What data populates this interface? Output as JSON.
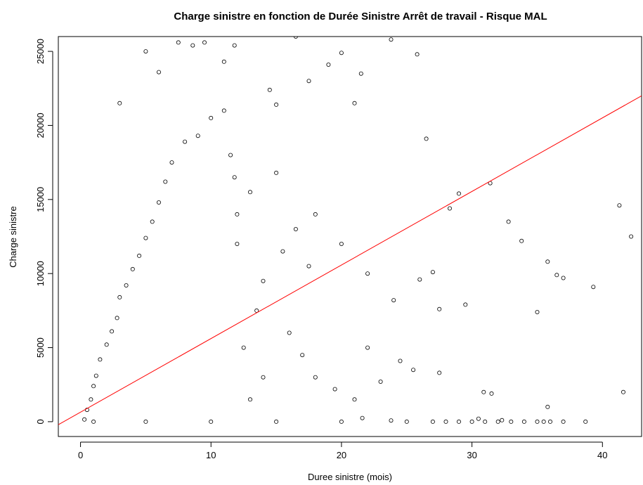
{
  "chart_data": {
    "type": "scatter",
    "title": "Charge sinistre en fonction de Durée Sinistre Arrêt de travail - Risque MAL",
    "xlabel": "Duree sinistre (mois)",
    "ylabel": "Charge sinistre",
    "xlim": [
      -1.7,
      43.0
    ],
    "ylim": [
      -1000,
      26000
    ],
    "x_ticks": [
      0,
      10,
      20,
      30,
      40
    ],
    "y_ticks": [
      0,
      5000,
      10000,
      15000,
      20000,
      25000
    ],
    "grid": false,
    "legend": "none",
    "marker": "open-circle",
    "marker_color": "#000000",
    "regression_line": {
      "color": "#ff0000",
      "points": [
        [
          -1.7,
          -200
        ],
        [
          43.0,
          22000
        ]
      ]
    },
    "sample_points": [
      [
        0.3,
        150
      ],
      [
        0.5,
        800
      ],
      [
        0.8,
        1500
      ],
      [
        1.0,
        2400
      ],
      [
        1.2,
        3100
      ],
      [
        1.5,
        4200
      ],
      [
        2.0,
        5200
      ],
      [
        2.4,
        6100
      ],
      [
        2.8,
        7000
      ],
      [
        3.0,
        8400
      ],
      [
        3.5,
        9200
      ],
      [
        4.0,
        10300
      ],
      [
        4.5,
        11200
      ],
      [
        5.0,
        12400
      ],
      [
        5.5,
        13500
      ],
      [
        6.0,
        14800
      ],
      [
        6.5,
        16200
      ],
      [
        7.0,
        17500
      ],
      [
        8.0,
        18900
      ],
      [
        9.0,
        19300
      ],
      [
        10.0,
        20500
      ],
      [
        11.0,
        21000
      ],
      [
        11.5,
        18000
      ],
      [
        11.8,
        16500
      ],
      [
        12.0,
        14000
      ],
      [
        12.0,
        12000
      ],
      [
        3.0,
        21500
      ],
      [
        5.0,
        25000
      ],
      [
        6.0,
        23600
      ],
      [
        7.5,
        25600
      ],
      [
        8.6,
        25400
      ],
      [
        9.5,
        25600
      ],
      [
        11.0,
        24300
      ],
      [
        11.8,
        25400
      ],
      [
        16.5,
        26000
      ],
      [
        20.0,
        24900
      ],
      [
        21.5,
        23500
      ],
      [
        23.8,
        25800
      ],
      [
        25.8,
        24800
      ],
      [
        26.5,
        19100
      ],
      [
        19.0,
        24100
      ],
      [
        14.5,
        22400
      ],
      [
        15.0,
        21400
      ],
      [
        17.5,
        23000
      ],
      [
        21.0,
        21500
      ],
      [
        15.0,
        16800
      ],
      [
        18.0,
        14000
      ],
      [
        20.0,
        12000
      ],
      [
        22.0,
        10000
      ],
      [
        24.0,
        8200
      ],
      [
        26.0,
        9600
      ],
      [
        27.0,
        10100
      ],
      [
        28.3,
        14400
      ],
      [
        29.0,
        15400
      ],
      [
        31.4,
        16100
      ],
      [
        32.8,
        13500
      ],
      [
        33.8,
        12200
      ],
      [
        35.0,
        7400
      ],
      [
        35.8,
        10800
      ],
      [
        36.5,
        9900
      ],
      [
        37.0,
        9700
      ],
      [
        39.3,
        9100
      ],
      [
        41.3,
        14600
      ],
      [
        41.6,
        2000
      ],
      [
        42.2,
        12500
      ],
      [
        35.8,
        1000
      ],
      [
        30.9,
        2000
      ],
      [
        31.5,
        1900
      ],
      [
        29.5,
        7900
      ],
      [
        27.5,
        7600
      ],
      [
        16.0,
        6000
      ],
      [
        17.0,
        4500
      ],
      [
        18.0,
        3000
      ],
      [
        19.5,
        2200
      ],
      [
        21.0,
        1500
      ],
      [
        22.0,
        5000
      ],
      [
        23.0,
        2700
      ],
      [
        24.5,
        4100
      ],
      [
        25.5,
        3500
      ],
      [
        27.5,
        3300
      ],
      [
        14.0,
        9500
      ],
      [
        15.5,
        11500
      ],
      [
        16.5,
        13000
      ],
      [
        17.5,
        10500
      ],
      [
        13.0,
        15500
      ],
      [
        13.5,
        7500
      ],
      [
        12.5,
        5000
      ],
      [
        14.0,
        3000
      ],
      [
        13.0,
        1500
      ],
      [
        1.0,
        0
      ],
      [
        5.0,
        0
      ],
      [
        10.0,
        0
      ],
      [
        15.0,
        0
      ],
      [
        20.0,
        0
      ],
      [
        25.0,
        0
      ],
      [
        27.0,
        0
      ],
      [
        28.0,
        0
      ],
      [
        29.0,
        0
      ],
      [
        30.0,
        0
      ],
      [
        31.0,
        0
      ],
      [
        32.0,
        0
      ],
      [
        33.0,
        0
      ],
      [
        34.0,
        0
      ],
      [
        35.0,
        0
      ],
      [
        35.5,
        0
      ],
      [
        36.0,
        0
      ],
      [
        37.0,
        0
      ],
      [
        38.7,
        0
      ],
      [
        30.5,
        200
      ],
      [
        32.3,
        100
      ],
      [
        21.6,
        250
      ],
      [
        23.8,
        80
      ]
    ]
  }
}
